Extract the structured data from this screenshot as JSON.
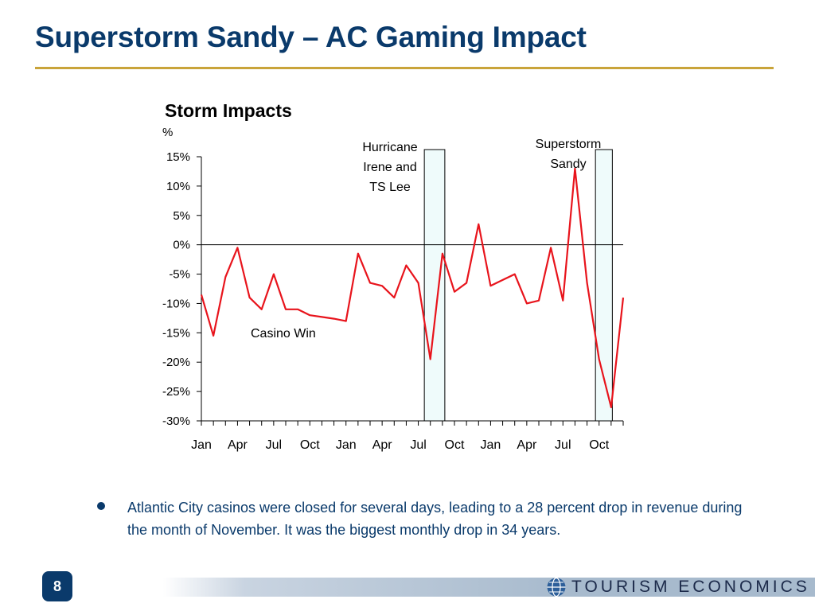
{
  "slide": {
    "title": "Superstorm Sandy – AC Gaming Impact",
    "bullet": "Atlantic City casinos were closed for several days, leading to a 28 percent drop in revenue during the month of November. It was the biggest monthly drop in 34 years.",
    "page_number": "8",
    "logo_text": "TOURISM ECONOMICS",
    "colors": {
      "title": "#0a3a6b",
      "rule": "#c9a43a",
      "series": "#e8141c",
      "shade_fill": "#effbfb"
    }
  },
  "chart_data": {
    "type": "line",
    "title": "Storm Impacts",
    "ylabel": "%",
    "ylim": [
      -30,
      15
    ],
    "yticks": [
      15,
      10,
      5,
      0,
      -5,
      -10,
      -15,
      -20,
      -25,
      -30
    ],
    "ytick_labels": [
      "15%",
      "10%",
      "5%",
      "0%",
      "-5%",
      "-10%",
      "-15%",
      "-20%",
      "-25%",
      "-30%"
    ],
    "xtick_labels": [
      "Jan",
      "Apr",
      "Jul",
      "Oct",
      "Jan",
      "Apr",
      "Jul",
      "Oct",
      "Jan",
      "Apr",
      "Jul",
      "Oct"
    ],
    "series": [
      {
        "name": "Casino Win",
        "values": [
          -8.5,
          -15.5,
          -5.5,
          -0.5,
          -9,
          -11,
          -5,
          -11,
          -11,
          -12,
          -12.3,
          -12.6,
          -13,
          -1.5,
          -6.5,
          -7,
          -9,
          -3.5,
          -6.5,
          -19.5,
          -1.5,
          -8,
          -6.5,
          3.5,
          -7,
          -6,
          -5,
          -10,
          -9.5,
          -0.5,
          -9.5,
          13,
          -6.5,
          -19.5,
          -27.7,
          -9
        ]
      }
    ],
    "shaded_periods": [
      {
        "label": "Hurricane Irene and TS Lee",
        "start": 18.5,
        "end": 20.2
      },
      {
        "label": "Superstorm Sandy",
        "start": 32.7,
        "end": 34.1
      }
    ],
    "annotations": [
      {
        "text": "Casino Win"
      }
    ]
  }
}
